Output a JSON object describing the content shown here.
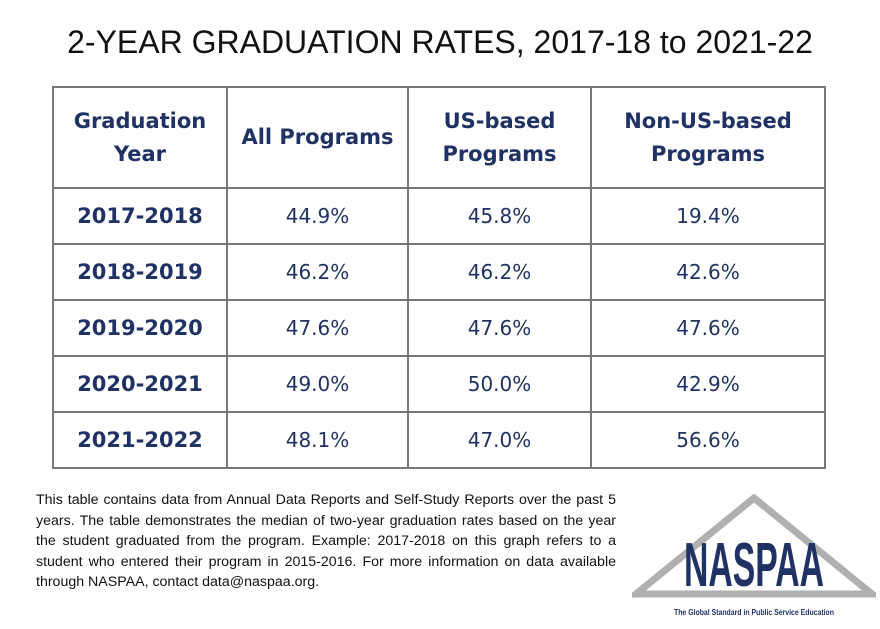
{
  "title": "2-YEAR GRADUATION RATES, 2017-18 to 2021-22",
  "chart_data": {
    "type": "table",
    "title": "2-YEAR GRADUATION RATES, 2017-18 to 2021-22",
    "columns": [
      "Graduation Year",
      "All Programs",
      "US-based Programs",
      "Non-US-based Programs"
    ],
    "rows": [
      [
        "2017-2018",
        "44.9%",
        "45.8%",
        "19.4%"
      ],
      [
        "2018-2019",
        "46.2%",
        "46.2%",
        "42.6%"
      ],
      [
        "2019-2020",
        "47.6%",
        "47.6%",
        "47.6%"
      ],
      [
        "2020-2021",
        "49.0%",
        "50.0%",
        "42.9%"
      ],
      [
        "2021-2022",
        "48.1%",
        "47.0%",
        "56.6%"
      ]
    ]
  },
  "note": "This table contains data from Annual Data Reports and Self-Study Reports over the past 5 years. The table demonstrates the median of two-year graduation rates based on the year the student graduated from the program. Example: 2017-2018 on this graph refers to a student who entered their program in 2015-2016. For more information on data available through NASPAA, contact data@naspaa.org.",
  "logo": {
    "text": "NASPAA",
    "tagline": "The Global Standard in Public Service Education"
  },
  "colors": {
    "text": "#1f3263",
    "border": "#777777",
    "logo_triangle": "#b0b0b0"
  }
}
